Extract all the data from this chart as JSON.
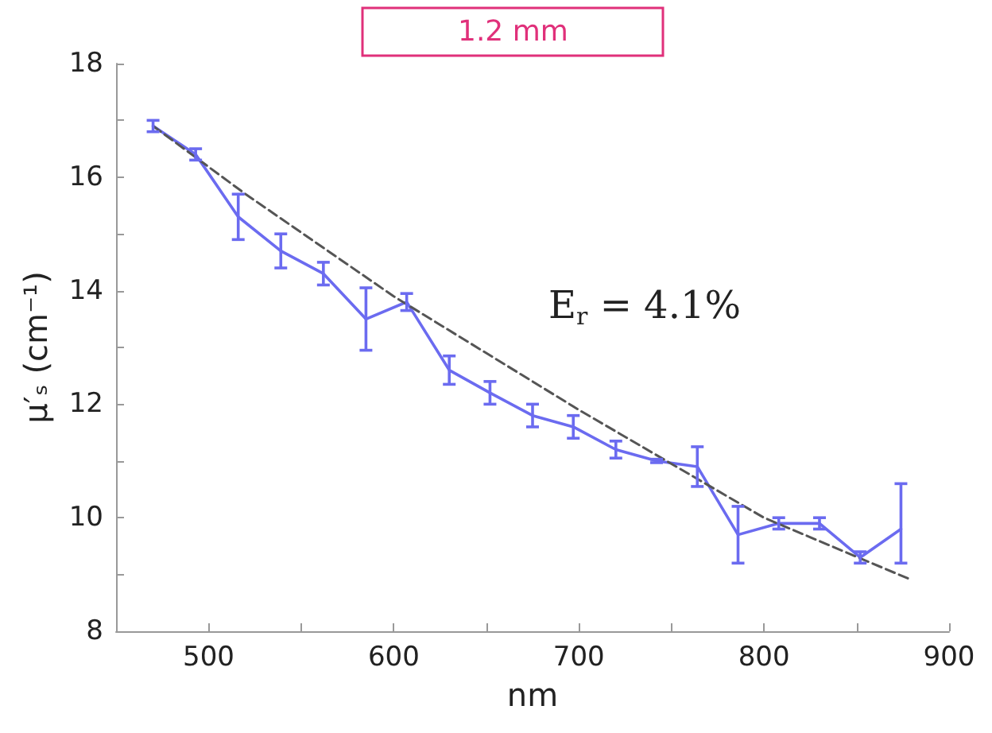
{
  "chart_data": {
    "type": "line",
    "title": "1.2 mm",
    "xlabel": "nm",
    "ylabel": "μ′ₛ (cm⁻¹)",
    "annotations": [
      "E$_{r}$ = 4.1%"
    ],
    "xlim": [
      450,
      900
    ],
    "xticks": [
      500,
      {
        "value": 550,
        "label": null
      },
      600,
      {
        "value": 650,
        "label": null
      },
      700,
      {
        "value": 750,
        "label": null
      },
      800,
      {
        "value": 850,
        "label": null
      },
      900
    ],
    "ylim": [
      8,
      18
    ],
    "yticks": [
      8,
      {
        "value": 9,
        "label": null
      },
      10,
      {
        "value": 11,
        "label": null
      },
      12,
      {
        "value": 13,
        "label": null
      },
      14,
      {
        "value": 15,
        "label": null
      },
      16,
      {
        "value": 17,
        "label": null
      },
      18
    ],
    "grid": false,
    "marker": "none",
    "series": [
      {
        "color": "#6b6bf0",
        "line_style": "solid",
        "x": [
          470,
          493,
          516,
          539,
          562,
          585,
          607,
          630,
          652,
          675,
          697,
          720,
          742,
          764,
          786,
          808,
          830,
          852,
          874
        ],
        "values": [
          16.9,
          16.4,
          15.3,
          14.7,
          14.3,
          13.5,
          13.8,
          12.6,
          12.2,
          11.8,
          11.6,
          11.2,
          11.0,
          10.9,
          9.7,
          9.9,
          9.9,
          9.3,
          9.8
        ],
        "errors": [
          0.1,
          0.1,
          0.4,
          0.3,
          0.2,
          0.55,
          0.15,
          0.25,
          0.2,
          0.2,
          0.2,
          0.15,
          0.03,
          0.35,
          0.5,
          0.1,
          0.1,
          0.1,
          [
            9.2,
            10.6
          ]
        ]
      },
      {
        "color": "#555555",
        "line_style": "dashed",
        "x": [
          470,
          520,
          600,
          700,
          800,
          880
        ],
        "values": [
          16.9,
          15.7,
          13.9,
          11.9,
          10.0,
          8.9
        ]
      }
    ]
  }
}
